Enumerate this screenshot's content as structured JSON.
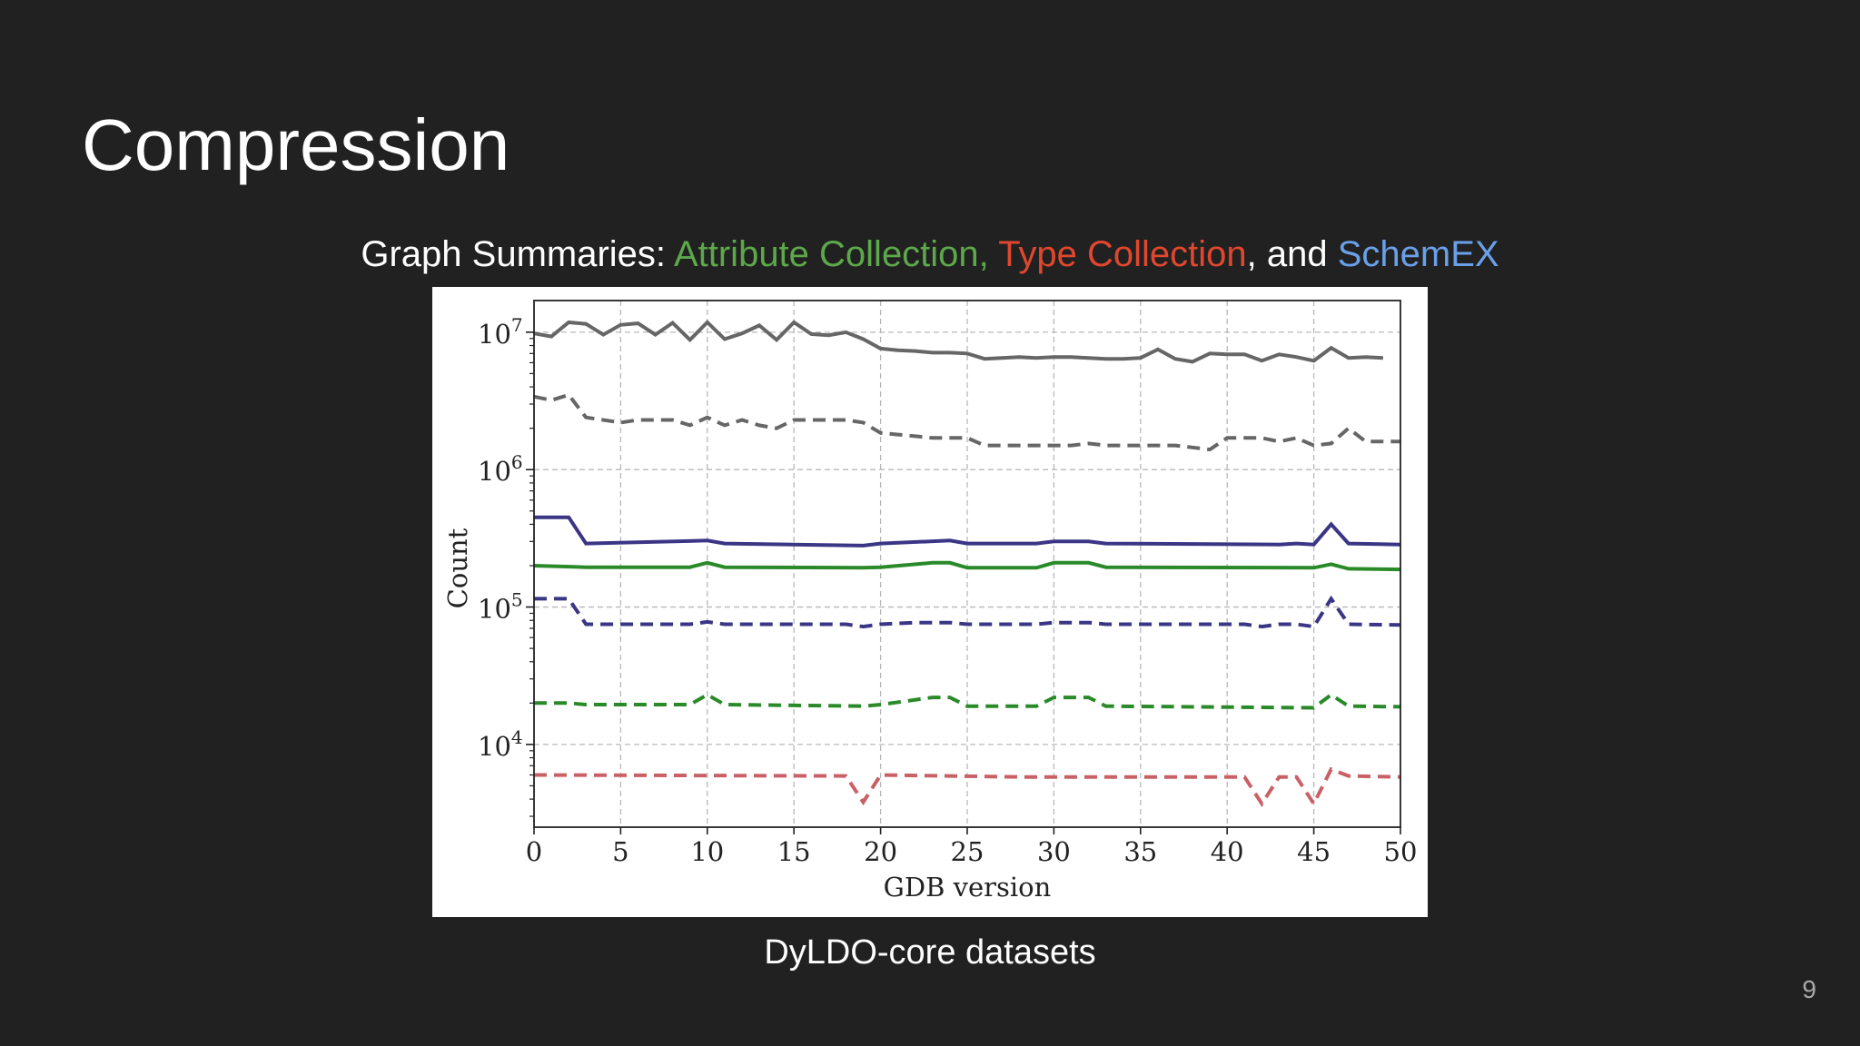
{
  "slide": {
    "title": "Compression",
    "subtitle": {
      "prefix": "Graph Summaries: ",
      "attr": "Attribute Collection,",
      "sep1": " ",
      "type": "Type Collection",
      "sep2": ", and ",
      "schemex": "SchemEX"
    },
    "caption": "DyLDO-core datasets",
    "page_number": "9"
  },
  "colors": {
    "background": "#212121",
    "attribute_collection": "#5ca84a",
    "type_collection": "#e0472e",
    "schemex": "#6aa0e8"
  },
  "chart_data": {
    "type": "line",
    "xlabel": "GDB version",
    "ylabel": "Count",
    "xlim": [
      0,
      50
    ],
    "ylim": [
      2500,
      17000000
    ],
    "yscale": "log",
    "xticks": [
      0,
      5,
      10,
      15,
      20,
      25,
      30,
      35,
      40,
      45,
      50
    ],
    "yticks": [
      {
        "value": 10000,
        "base": "10",
        "exp": "4"
      },
      {
        "value": 100000,
        "base": "10",
        "exp": "5"
      },
      {
        "value": 1000000,
        "base": "10",
        "exp": "6"
      },
      {
        "value": 10000000,
        "base": "10",
        "exp": "7"
      }
    ],
    "grid": true,
    "series": [
      {
        "style": "solid",
        "color": "#666666",
        "points": [
          [
            0,
            9800000
          ],
          [
            1,
            9300000
          ],
          [
            2,
            11800000
          ],
          [
            3,
            11500000
          ],
          [
            4,
            9600000
          ],
          [
            5,
            11300000
          ],
          [
            6,
            11600000
          ],
          [
            7,
            9600000
          ],
          [
            8,
            11700000
          ],
          [
            9,
            8800000
          ],
          [
            10,
            11800000
          ],
          [
            11,
            8900000
          ],
          [
            12,
            9800000
          ],
          [
            13,
            11200000
          ],
          [
            14,
            8800000
          ],
          [
            15,
            11800000
          ],
          [
            16,
            9700000
          ],
          [
            17,
            9500000
          ],
          [
            18,
            10000000
          ],
          [
            19,
            8900000
          ],
          [
            20,
            7600000
          ],
          [
            21,
            7400000
          ],
          [
            22,
            7300000
          ],
          [
            23,
            7100000
          ],
          [
            24,
            7100000
          ],
          [
            25,
            7000000
          ],
          [
            26,
            6400000
          ],
          [
            27,
            6500000
          ],
          [
            28,
            6600000
          ],
          [
            29,
            6500000
          ],
          [
            30,
            6600000
          ],
          [
            31,
            6600000
          ],
          [
            32,
            6500000
          ],
          [
            33,
            6400000
          ],
          [
            34,
            6400000
          ],
          [
            35,
            6500000
          ],
          [
            36,
            7500000
          ],
          [
            37,
            6400000
          ],
          [
            38,
            6100000
          ],
          [
            39,
            7000000
          ],
          [
            40,
            6900000
          ],
          [
            41,
            6900000
          ],
          [
            42,
            6200000
          ],
          [
            43,
            6900000
          ],
          [
            44,
            6600000
          ],
          [
            45,
            6200000
          ],
          [
            46,
            7700000
          ],
          [
            47,
            6500000
          ],
          [
            48,
            6600000
          ],
          [
            49,
            6500000
          ]
        ]
      },
      {
        "style": "dashed",
        "color": "#666666",
        "points": [
          [
            0,
            3400000
          ],
          [
            1,
            3200000
          ],
          [
            2,
            3500000
          ],
          [
            3,
            2400000
          ],
          [
            4,
            2300000
          ],
          [
            5,
            2200000
          ],
          [
            6,
            2300000
          ],
          [
            7,
            2300000
          ],
          [
            8,
            2300000
          ],
          [
            9,
            2100000
          ],
          [
            10,
            2400000
          ],
          [
            11,
            2100000
          ],
          [
            12,
            2300000
          ],
          [
            13,
            2100000
          ],
          [
            14,
            2000000
          ],
          [
            15,
            2300000
          ],
          [
            16,
            2300000
          ],
          [
            17,
            2300000
          ],
          [
            18,
            2300000
          ],
          [
            19,
            2200000
          ],
          [
            20,
            1850000
          ],
          [
            21,
            1800000
          ],
          [
            22,
            1750000
          ],
          [
            23,
            1700000
          ],
          [
            24,
            1700000
          ],
          [
            25,
            1700000
          ],
          [
            26,
            1500000
          ],
          [
            27,
            1500000
          ],
          [
            28,
            1500000
          ],
          [
            29,
            1500000
          ],
          [
            30,
            1500000
          ],
          [
            31,
            1500000
          ],
          [
            32,
            1550000
          ],
          [
            33,
            1500000
          ],
          [
            34,
            1500000
          ],
          [
            35,
            1500000
          ],
          [
            36,
            1500000
          ],
          [
            37,
            1500000
          ],
          [
            38,
            1450000
          ],
          [
            39,
            1400000
          ],
          [
            40,
            1700000
          ],
          [
            41,
            1700000
          ],
          [
            42,
            1700000
          ],
          [
            43,
            1600000
          ],
          [
            44,
            1700000
          ],
          [
            45,
            1500000
          ],
          [
            46,
            1550000
          ],
          [
            47,
            2000000
          ],
          [
            48,
            1600000
          ],
          [
            49,
            1600000
          ],
          [
            50,
            1600000
          ]
        ]
      },
      {
        "style": "solid",
        "color": "#3b3585",
        "points": [
          [
            0,
            450000
          ],
          [
            1,
            450000
          ],
          [
            2,
            450000
          ],
          [
            3,
            290000
          ],
          [
            10,
            305000
          ],
          [
            11,
            290000
          ],
          [
            19,
            280000
          ],
          [
            20,
            290000
          ],
          [
            24,
            305000
          ],
          [
            25,
            290000
          ],
          [
            29,
            290000
          ],
          [
            30,
            300000
          ],
          [
            32,
            300000
          ],
          [
            33,
            290000
          ],
          [
            43,
            285000
          ],
          [
            44,
            290000
          ],
          [
            45,
            285000
          ],
          [
            46,
            400000
          ],
          [
            47,
            290000
          ],
          [
            50,
            285000
          ]
        ]
      },
      {
        "style": "solid",
        "color": "#2a8a2a",
        "points": [
          [
            0,
            200000
          ],
          [
            3,
            195000
          ],
          [
            9,
            195000
          ],
          [
            10,
            210000
          ],
          [
            11,
            195000
          ],
          [
            19,
            193000
          ],
          [
            20,
            195000
          ],
          [
            23,
            210000
          ],
          [
            24,
            210000
          ],
          [
            25,
            193000
          ],
          [
            29,
            193000
          ],
          [
            30,
            210000
          ],
          [
            32,
            210000
          ],
          [
            33,
            195000
          ],
          [
            45,
            193000
          ],
          [
            46,
            205000
          ],
          [
            47,
            190000
          ],
          [
            50,
            188000
          ]
        ]
      },
      {
        "style": "dashed",
        "color": "#3b3585",
        "points": [
          [
            0,
            115000
          ],
          [
            2,
            115000
          ],
          [
            3,
            75000
          ],
          [
            9,
            75000
          ],
          [
            10,
            78000
          ],
          [
            11,
            75000
          ],
          [
            18,
            75000
          ],
          [
            19,
            72000
          ],
          [
            20,
            75000
          ],
          [
            22,
            77000
          ],
          [
            24,
            77000
          ],
          [
            25,
            75000
          ],
          [
            29,
            75000
          ],
          [
            30,
            77000
          ],
          [
            32,
            77000
          ],
          [
            33,
            75000
          ],
          [
            41,
            75000
          ],
          [
            42,
            72000
          ],
          [
            43,
            75000
          ],
          [
            44,
            75000
          ],
          [
            45,
            72000
          ],
          [
            46,
            115000
          ],
          [
            47,
            75000
          ],
          [
            50,
            74000
          ]
        ]
      },
      {
        "style": "dashed",
        "color": "#2a8a2a",
        "points": [
          [
            0,
            20000
          ],
          [
            2,
            20000
          ],
          [
            3,
            19500
          ],
          [
            9,
            19500
          ],
          [
            10,
            23000
          ],
          [
            11,
            19500
          ],
          [
            19,
            19000
          ],
          [
            20,
            19500
          ],
          [
            23,
            22000
          ],
          [
            24,
            22000
          ],
          [
            25,
            19000
          ],
          [
            29,
            19000
          ],
          [
            30,
            22000
          ],
          [
            32,
            22000
          ],
          [
            33,
            19000
          ],
          [
            45,
            18500
          ],
          [
            46,
            23000
          ],
          [
            47,
            19000
          ],
          [
            50,
            18800
          ]
        ]
      },
      {
        "style": "dashed",
        "color": "#c96065",
        "points": [
          [
            0,
            6000
          ],
          [
            18,
            5900
          ],
          [
            19,
            3800
          ],
          [
            20,
            6000
          ],
          [
            28,
            5800
          ],
          [
            40,
            5800
          ],
          [
            41,
            5800
          ],
          [
            42,
            3700
          ],
          [
            43,
            5800
          ],
          [
            44,
            5800
          ],
          [
            45,
            3700
          ],
          [
            46,
            6600
          ],
          [
            47,
            5900
          ],
          [
            50,
            5800
          ]
        ]
      }
    ]
  }
}
